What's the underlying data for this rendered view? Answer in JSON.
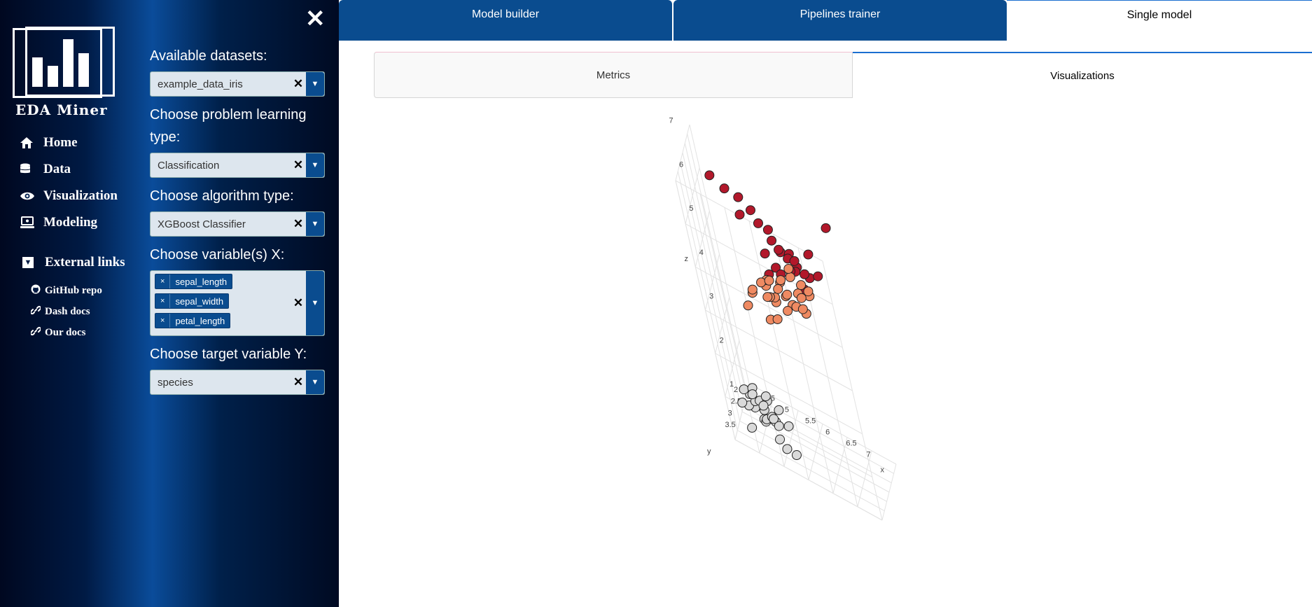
{
  "app": {
    "name": "EDA Miner"
  },
  "sidebar": {
    "nav": [
      {
        "label": "Home",
        "icon": "home-icon"
      },
      {
        "label": "Data",
        "icon": "database-icon"
      },
      {
        "label": "Visualization",
        "icon": "eye-icon"
      },
      {
        "label": "Modeling",
        "icon": "laptop-icon"
      }
    ],
    "external": {
      "heading": "External links",
      "links": [
        {
          "label": "GitHub repo",
          "icon": "github-icon"
        },
        {
          "label": "Dash docs",
          "icon": "link-icon"
        },
        {
          "label": "Our docs",
          "icon": "link-icon"
        }
      ]
    }
  },
  "form": {
    "dataset_label": "Available datasets:",
    "dataset_value": "example_data_iris",
    "problem_label": "Choose problem learning type:",
    "problem_value": "Classification",
    "algorithm_label": "Choose algorithm type:",
    "algorithm_value": "XGBoost Classifier",
    "x_label": "Choose variable(s) X:",
    "x_values": [
      "sepal_length",
      "sepal_width",
      "petal_length"
    ],
    "y_label": "Choose target variable Y:",
    "y_value": "species"
  },
  "tabs": {
    "top": [
      "Model builder",
      "Pipelines trainer",
      "Single model"
    ],
    "top_active": 2,
    "sub": [
      "Metrics",
      "Visualizations"
    ],
    "sub_active": 1
  },
  "chart_data": {
    "type": "scatter",
    "title": "",
    "axes": {
      "x": {
        "label": "x",
        "ticks": [
          "4.5",
          "5",
          "5.5",
          "6",
          "6.5",
          "7"
        ]
      },
      "y": {
        "label": "y",
        "ticks": [
          "2",
          "2.5",
          "3",
          "3.5"
        ]
      },
      "z": {
        "label": "z",
        "ticks": [
          "1",
          "2",
          "3",
          "4",
          "5",
          "6",
          "7"
        ]
      }
    },
    "series": [
      {
        "color": "#b2182b",
        "points": [
          [
            5.0,
            3.5,
            6.9
          ],
          [
            5.3,
            3.4,
            6.7
          ],
          [
            5.6,
            3.3,
            6.6
          ],
          [
            5.8,
            3.1,
            6.3
          ],
          [
            5.5,
            3.2,
            6.1
          ],
          [
            5.9,
            3.0,
            6.0
          ],
          [
            6.1,
            2.9,
            5.9
          ],
          [
            6.4,
            3.2,
            5.7
          ],
          [
            6.3,
            3.0,
            5.6
          ],
          [
            6.5,
            2.8,
            5.5
          ],
          [
            6.7,
            3.0,
            5.4
          ],
          [
            6.2,
            3.3,
            5.3
          ],
          [
            6.6,
            2.9,
            5.2
          ],
          [
            6.0,
            3.4,
            5.1
          ],
          [
            6.8,
            3.1,
            5.0
          ],
          [
            6.9,
            2.7,
            5.1
          ],
          [
            7.1,
            3.0,
            5.9
          ],
          [
            7.2,
            2.9,
            5.4
          ],
          [
            6.4,
            2.7,
            5.0
          ],
          [
            6.3,
            3.3,
            5.2
          ],
          [
            6.5,
            3.0,
            5.5
          ],
          [
            6.1,
            2.8,
            5.6
          ],
          [
            6.7,
            3.1,
            5.6
          ],
          [
            5.8,
            2.7,
            5.1
          ],
          [
            6.9,
            3.1,
            5.4
          ],
          [
            7.7,
            2.8,
            6.7
          ]
        ]
      },
      {
        "color": "#ef8a62",
        "points": [
          [
            6.4,
            3.2,
            4.5
          ],
          [
            6.9,
            3.1,
            4.9
          ],
          [
            5.5,
            2.3,
            4.0
          ],
          [
            6.5,
            2.8,
            4.6
          ],
          [
            5.7,
            2.8,
            4.5
          ],
          [
            6.3,
            3.3,
            4.7
          ],
          [
            4.9,
            2.4,
            3.3
          ],
          [
            6.6,
            2.9,
            4.6
          ],
          [
            5.2,
            2.7,
            3.9
          ],
          [
            5.0,
            2.0,
            3.5
          ],
          [
            5.9,
            3.0,
            4.2
          ],
          [
            6.0,
            2.2,
            4.0
          ],
          [
            6.1,
            2.9,
            4.7
          ],
          [
            5.6,
            2.9,
            3.6
          ],
          [
            6.7,
            3.1,
            4.4
          ],
          [
            5.6,
            3.0,
            4.5
          ],
          [
            5.8,
            2.7,
            4.1
          ],
          [
            6.2,
            2.2,
            4.5
          ],
          [
            5.6,
            2.5,
            3.9
          ],
          [
            5.9,
            3.2,
            4.8
          ],
          [
            6.1,
            2.8,
            4.0
          ],
          [
            6.3,
            2.5,
            4.9
          ],
          [
            6.1,
            2.8,
            4.7
          ],
          [
            6.4,
            2.9,
            4.3
          ],
          [
            6.6,
            3.0,
            4.4
          ],
          [
            6.8,
            2.8,
            4.8
          ],
          [
            6.7,
            3.0,
            5.0
          ],
          [
            6.0,
            2.9,
            4.5
          ],
          [
            5.7,
            2.6,
            3.5
          ],
          [
            5.5,
            2.4,
            3.8
          ]
        ]
      },
      {
        "color": "#d9d9d9",
        "points": [
          [
            5.1,
            3.5,
            1.4
          ],
          [
            4.9,
            3.0,
            1.4
          ],
          [
            4.7,
            3.2,
            1.3
          ],
          [
            4.6,
            3.1,
            1.5
          ],
          [
            5.0,
            3.6,
            1.4
          ],
          [
            5.4,
            3.9,
            1.7
          ],
          [
            4.6,
            3.4,
            1.4
          ],
          [
            5.0,
            3.4,
            1.5
          ],
          [
            4.4,
            2.9,
            1.4
          ],
          [
            4.9,
            3.1,
            1.5
          ],
          [
            5.4,
            3.7,
            1.5
          ],
          [
            4.8,
            3.4,
            1.6
          ],
          [
            4.8,
            3.0,
            1.4
          ],
          [
            4.3,
            3.0,
            1.1
          ],
          [
            5.8,
            4.0,
            1.2
          ],
          [
            5.7,
            4.4,
            1.5
          ],
          [
            5.4,
            3.9,
            1.3
          ],
          [
            5.1,
            3.5,
            1.4
          ],
          [
            5.7,
            3.8,
            1.7
          ],
          [
            5.1,
            3.8,
            1.5
          ],
          [
            5.4,
            3.4,
            1.7
          ],
          [
            5.1,
            3.7,
            1.5
          ],
          [
            4.6,
            3.6,
            1.0
          ],
          [
            5.1,
            3.3,
            1.7
          ],
          [
            4.8,
            3.4,
            1.9
          ],
          [
            5.0,
            3.0,
            1.6
          ],
          [
            5.0,
            3.4,
            1.6
          ],
          [
            5.2,
            3.5,
            1.5
          ],
          [
            5.2,
            3.4,
            1.4
          ],
          [
            4.7,
            3.2,
            1.6
          ]
        ]
      }
    ]
  }
}
